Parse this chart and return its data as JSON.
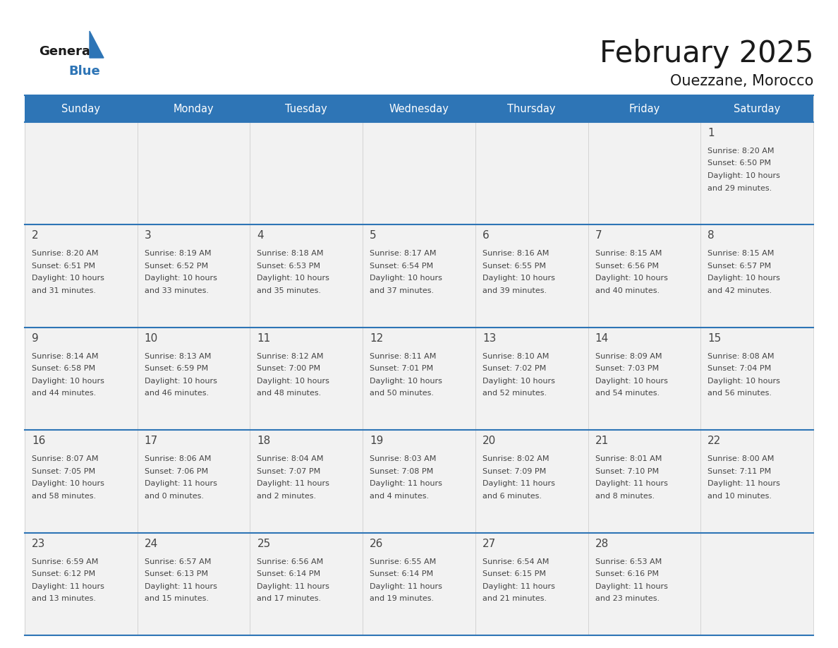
{
  "title": "February 2025",
  "subtitle": "Ouezzane, Morocco",
  "header_bg": "#2E75B6",
  "header_text_color": "#FFFFFF",
  "cell_bg": "#F2F2F2",
  "separator_color": "#2E75B6",
  "line_color": "#AAAAAA",
  "text_color": "#444444",
  "days_of_week": [
    "Sunday",
    "Monday",
    "Tuesday",
    "Wednesday",
    "Thursday",
    "Friday",
    "Saturday"
  ],
  "calendar_data": [
    [
      {
        "day": "",
        "lines": []
      },
      {
        "day": "",
        "lines": []
      },
      {
        "day": "",
        "lines": []
      },
      {
        "day": "",
        "lines": []
      },
      {
        "day": "",
        "lines": []
      },
      {
        "day": "",
        "lines": []
      },
      {
        "day": "1",
        "lines": [
          "Sunrise: 8:20 AM",
          "Sunset: 6:50 PM",
          "Daylight: 10 hours",
          "and 29 minutes."
        ]
      }
    ],
    [
      {
        "day": "2",
        "lines": [
          "Sunrise: 8:20 AM",
          "Sunset: 6:51 PM",
          "Daylight: 10 hours",
          "and 31 minutes."
        ]
      },
      {
        "day": "3",
        "lines": [
          "Sunrise: 8:19 AM",
          "Sunset: 6:52 PM",
          "Daylight: 10 hours",
          "and 33 minutes."
        ]
      },
      {
        "day": "4",
        "lines": [
          "Sunrise: 8:18 AM",
          "Sunset: 6:53 PM",
          "Daylight: 10 hours",
          "and 35 minutes."
        ]
      },
      {
        "day": "5",
        "lines": [
          "Sunrise: 8:17 AM",
          "Sunset: 6:54 PM",
          "Daylight: 10 hours",
          "and 37 minutes."
        ]
      },
      {
        "day": "6",
        "lines": [
          "Sunrise: 8:16 AM",
          "Sunset: 6:55 PM",
          "Daylight: 10 hours",
          "and 39 minutes."
        ]
      },
      {
        "day": "7",
        "lines": [
          "Sunrise: 8:15 AM",
          "Sunset: 6:56 PM",
          "Daylight: 10 hours",
          "and 40 minutes."
        ]
      },
      {
        "day": "8",
        "lines": [
          "Sunrise: 8:15 AM",
          "Sunset: 6:57 PM",
          "Daylight: 10 hours",
          "and 42 minutes."
        ]
      }
    ],
    [
      {
        "day": "9",
        "lines": [
          "Sunrise: 8:14 AM",
          "Sunset: 6:58 PM",
          "Daylight: 10 hours",
          "and 44 minutes."
        ]
      },
      {
        "day": "10",
        "lines": [
          "Sunrise: 8:13 AM",
          "Sunset: 6:59 PM",
          "Daylight: 10 hours",
          "and 46 minutes."
        ]
      },
      {
        "day": "11",
        "lines": [
          "Sunrise: 8:12 AM",
          "Sunset: 7:00 PM",
          "Daylight: 10 hours",
          "and 48 minutes."
        ]
      },
      {
        "day": "12",
        "lines": [
          "Sunrise: 8:11 AM",
          "Sunset: 7:01 PM",
          "Daylight: 10 hours",
          "and 50 minutes."
        ]
      },
      {
        "day": "13",
        "lines": [
          "Sunrise: 8:10 AM",
          "Sunset: 7:02 PM",
          "Daylight: 10 hours",
          "and 52 minutes."
        ]
      },
      {
        "day": "14",
        "lines": [
          "Sunrise: 8:09 AM",
          "Sunset: 7:03 PM",
          "Daylight: 10 hours",
          "and 54 minutes."
        ]
      },
      {
        "day": "15",
        "lines": [
          "Sunrise: 8:08 AM",
          "Sunset: 7:04 PM",
          "Daylight: 10 hours",
          "and 56 minutes."
        ]
      }
    ],
    [
      {
        "day": "16",
        "lines": [
          "Sunrise: 8:07 AM",
          "Sunset: 7:05 PM",
          "Daylight: 10 hours",
          "and 58 minutes."
        ]
      },
      {
        "day": "17",
        "lines": [
          "Sunrise: 8:06 AM",
          "Sunset: 7:06 PM",
          "Daylight: 11 hours",
          "and 0 minutes."
        ]
      },
      {
        "day": "18",
        "lines": [
          "Sunrise: 8:04 AM",
          "Sunset: 7:07 PM",
          "Daylight: 11 hours",
          "and 2 minutes."
        ]
      },
      {
        "day": "19",
        "lines": [
          "Sunrise: 8:03 AM",
          "Sunset: 7:08 PM",
          "Daylight: 11 hours",
          "and 4 minutes."
        ]
      },
      {
        "day": "20",
        "lines": [
          "Sunrise: 8:02 AM",
          "Sunset: 7:09 PM",
          "Daylight: 11 hours",
          "and 6 minutes."
        ]
      },
      {
        "day": "21",
        "lines": [
          "Sunrise: 8:01 AM",
          "Sunset: 7:10 PM",
          "Daylight: 11 hours",
          "and 8 minutes."
        ]
      },
      {
        "day": "22",
        "lines": [
          "Sunrise: 8:00 AM",
          "Sunset: 7:11 PM",
          "Daylight: 11 hours",
          "and 10 minutes."
        ]
      }
    ],
    [
      {
        "day": "23",
        "lines": [
          "Sunrise: 6:59 AM",
          "Sunset: 6:12 PM",
          "Daylight: 11 hours",
          "and 13 minutes."
        ]
      },
      {
        "day": "24",
        "lines": [
          "Sunrise: 6:57 AM",
          "Sunset: 6:13 PM",
          "Daylight: 11 hours",
          "and 15 minutes."
        ]
      },
      {
        "day": "25",
        "lines": [
          "Sunrise: 6:56 AM",
          "Sunset: 6:14 PM",
          "Daylight: 11 hours",
          "and 17 minutes."
        ]
      },
      {
        "day": "26",
        "lines": [
          "Sunrise: 6:55 AM",
          "Sunset: 6:14 PM",
          "Daylight: 11 hours",
          "and 19 minutes."
        ]
      },
      {
        "day": "27",
        "lines": [
          "Sunrise: 6:54 AM",
          "Sunset: 6:15 PM",
          "Daylight: 11 hours",
          "and 21 minutes."
        ]
      },
      {
        "day": "28",
        "lines": [
          "Sunrise: 6:53 AM",
          "Sunset: 6:16 PM",
          "Daylight: 11 hours",
          "and 23 minutes."
        ]
      },
      {
        "day": "",
        "lines": []
      }
    ]
  ]
}
